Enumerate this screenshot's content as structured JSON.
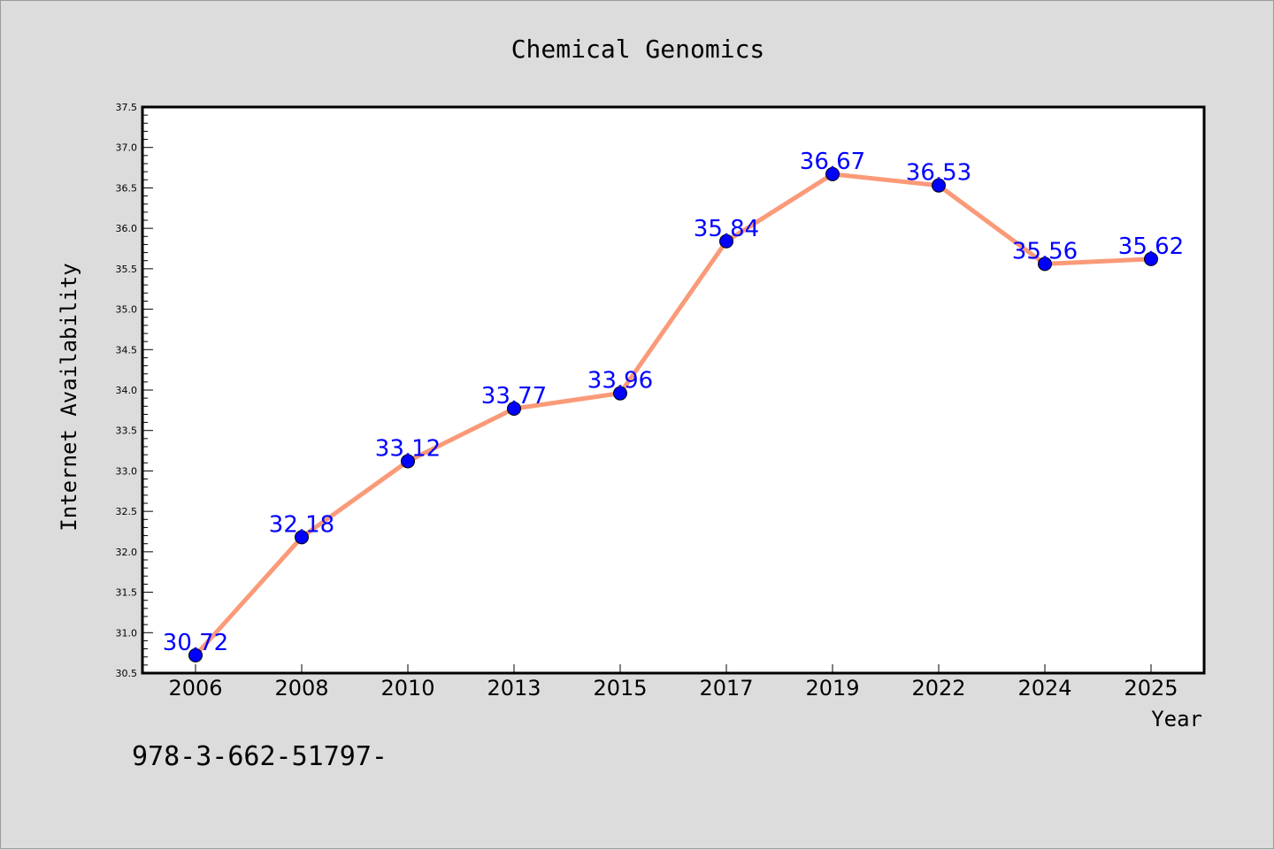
{
  "chart_data": {
    "type": "line",
    "title": "Chemical Genomics",
    "xlabel": "Year",
    "ylabel": "Internet Availability",
    "categories": [
      "2006",
      "2008",
      "2010",
      "2013",
      "2015",
      "2017",
      "2019",
      "2022",
      "2024",
      "2025"
    ],
    "series": [
      {
        "values": [
          30.72,
          32.18,
          33.12,
          33.77,
          33.96,
          35.84,
          36.67,
          36.53,
          35.56,
          35.62
        ]
      }
    ],
    "data_labels": [
      "30.72",
      "32.18",
      "33.12",
      "33.77",
      "33.96",
      "35.84",
      "36.67",
      "36.53",
      "35.56",
      "35.62"
    ],
    "ylim": [
      30.5,
      37.5
    ],
    "yticks": [
      "30.5",
      "31.0",
      "31.5",
      "32.0",
      "32.5",
      "33.0",
      "33.5",
      "34.0",
      "34.5",
      "35.0",
      "35.5",
      "36.0",
      "36.5",
      "37.0",
      "37.5"
    ],
    "grid": false,
    "legend": "none",
    "colors": {
      "background": "#dcdcdc",
      "plot_background": "#ffffff",
      "line": "#fa9a78",
      "marker": "#0000ff",
      "data_label": "#0000ff"
    }
  },
  "footer_text": "978-3-662-51797-"
}
